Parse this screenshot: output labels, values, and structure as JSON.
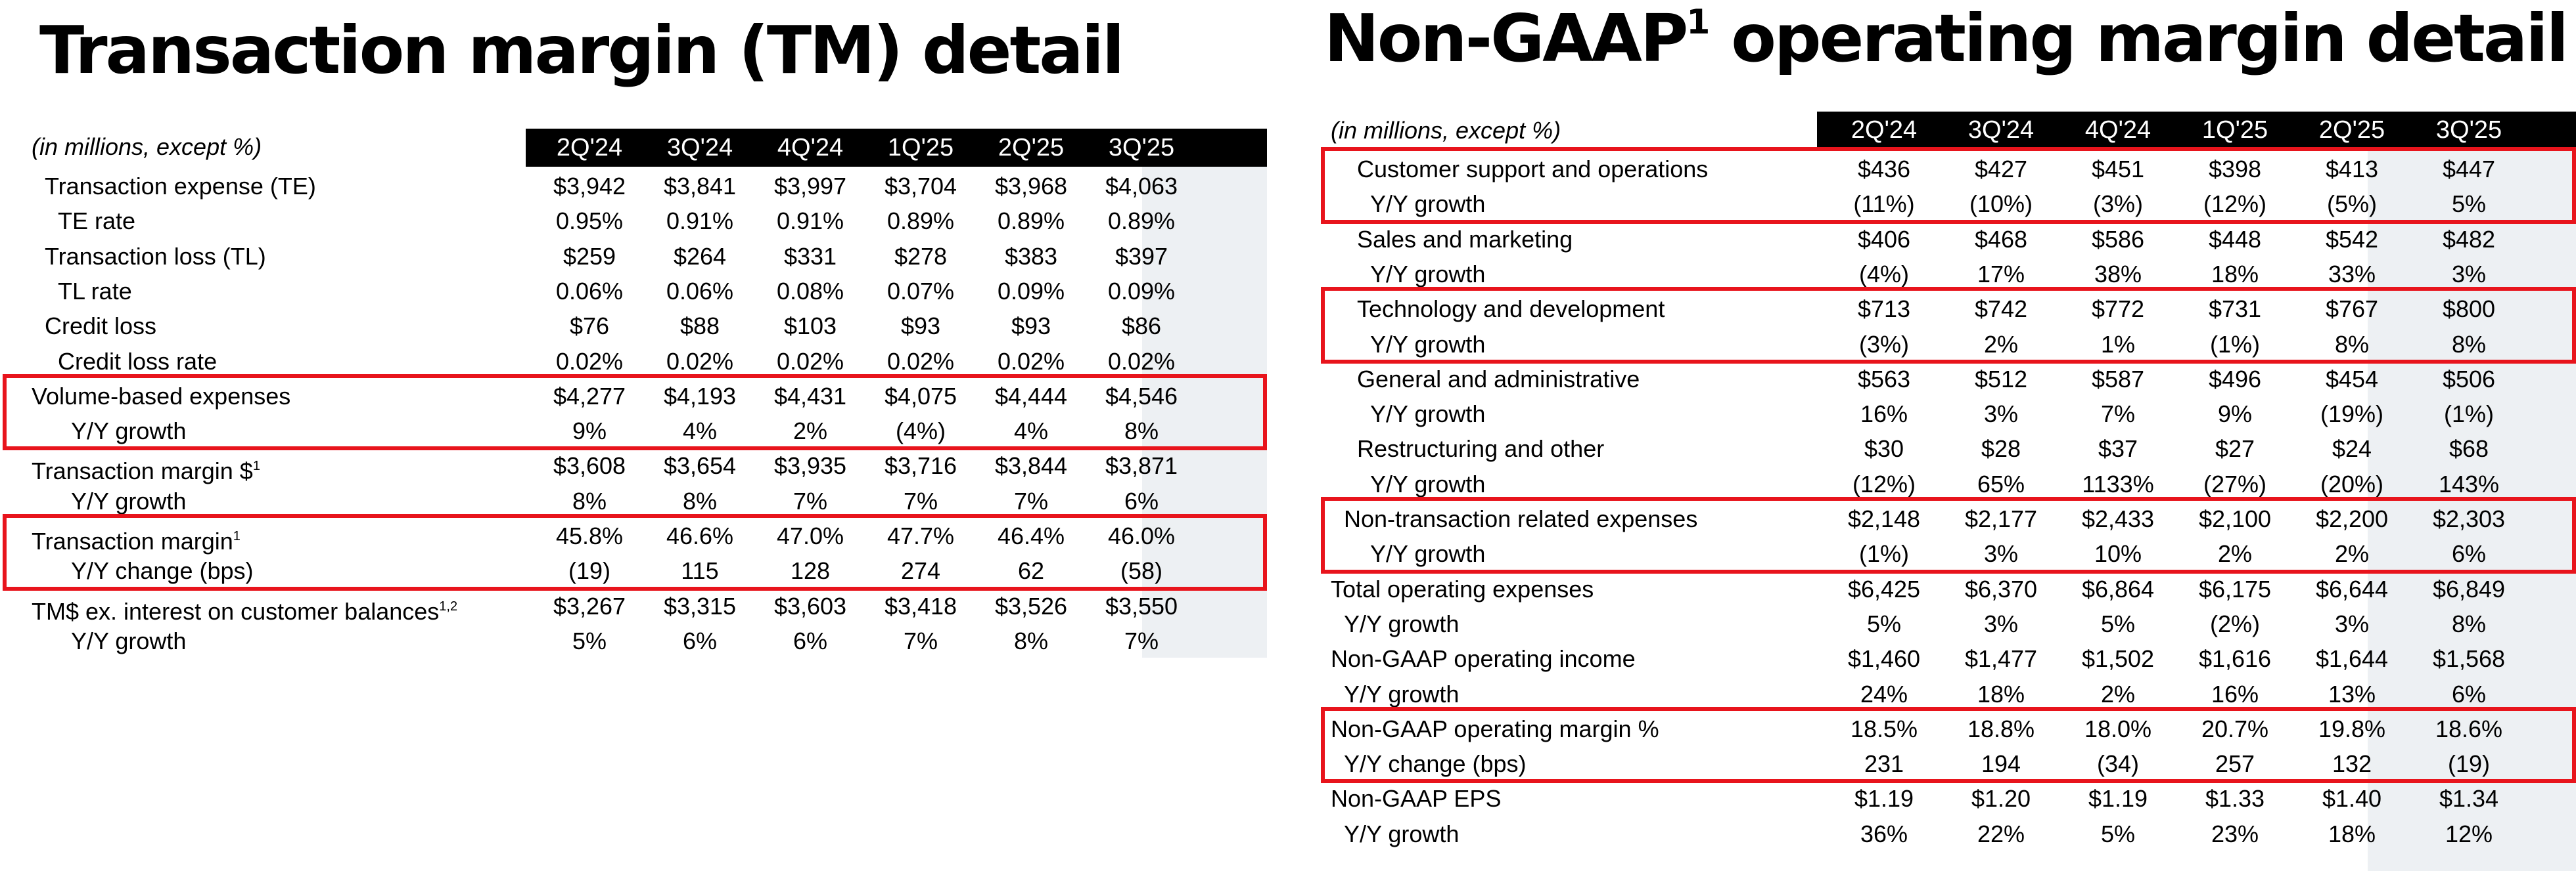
{
  "left": {
    "title": "Transaction margin (TM) detail",
    "unit_note": "(in millions, except %)",
    "columns": [
      "2Q'24",
      "3Q'24",
      "4Q'24",
      "1Q'25",
      "2Q'25",
      "3Q'25"
    ],
    "rows": [
      {
        "label": "Transaction expense (TE)",
        "indent": 1,
        "values": [
          "$3,942",
          "$3,841",
          "$3,997",
          "$3,704",
          "$3,968",
          "$4,063"
        ]
      },
      {
        "label": "TE rate",
        "indent": 2,
        "values": [
          "0.95%",
          "0.91%",
          "0.91%",
          "0.89%",
          "0.89%",
          "0.89%"
        ]
      },
      {
        "label": "Transaction loss (TL)",
        "indent": 1,
        "values": [
          "$259",
          "$264",
          "$331",
          "$278",
          "$383",
          "$397"
        ]
      },
      {
        "label": "TL rate",
        "indent": 2,
        "values": [
          "0.06%",
          "0.06%",
          "0.08%",
          "0.07%",
          "0.09%",
          "0.09%"
        ]
      },
      {
        "label": "Credit loss",
        "indent": 1,
        "values": [
          "$76",
          "$88",
          "$103",
          "$93",
          "$93",
          "$86"
        ]
      },
      {
        "label": "Credit loss rate",
        "indent": 2,
        "values": [
          "0.02%",
          "0.02%",
          "0.02%",
          "0.02%",
          "0.02%",
          "0.02%"
        ]
      },
      {
        "label": "Volume-based expenses",
        "indent": 0,
        "values": [
          "$4,277",
          "$4,193",
          "$4,431",
          "$4,075",
          "$4,444",
          "$4,546"
        ]
      },
      {
        "label": "Y/Y growth",
        "indent": 3,
        "values": [
          "9%",
          "4%",
          "2%",
          "(4%)",
          "4%",
          "8%"
        ]
      },
      {
        "label": "Transaction margin $",
        "sup": "1",
        "indent": 0,
        "values": [
          "$3,608",
          "$3,654",
          "$3,935",
          "$3,716",
          "$3,844",
          "$3,871"
        ]
      },
      {
        "label": "Y/Y growth",
        "indent": 3,
        "values": [
          "8%",
          "8%",
          "7%",
          "7%",
          "7%",
          "6%"
        ]
      },
      {
        "label": "Transaction margin",
        "sup": "1",
        "indent": 0,
        "values": [
          "45.8%",
          "46.6%",
          "47.0%",
          "47.7%",
          "46.4%",
          "46.0%"
        ]
      },
      {
        "label": "Y/Y change (bps)",
        "indent": 3,
        "values": [
          "(19)",
          "115",
          "128",
          "274",
          "62",
          "(58)"
        ]
      },
      {
        "label": "TM$ ex. interest on customer balances",
        "sup": "1,2",
        "indent": 0,
        "values": [
          "$3,267",
          "$3,315",
          "$3,603",
          "$3,418",
          "$3,526",
          "$3,550"
        ]
      },
      {
        "label": "Y/Y growth",
        "indent": 3,
        "values": [
          "5%",
          "6%",
          "6%",
          "7%",
          "8%",
          "7%"
        ]
      }
    ]
  },
  "right": {
    "title": "Non-GAAP",
    "title_sup": "1",
    "title_rest": " operating margin detail",
    "unit_note": "(in millions, except %)",
    "columns": [
      "2Q'24",
      "3Q'24",
      "4Q'24",
      "1Q'25",
      "2Q'25",
      "3Q'25"
    ],
    "rows": [
      {
        "label": "Customer support and operations",
        "indent": 1,
        "values": [
          "$436",
          "$427",
          "$451",
          "$398",
          "$413",
          "$447"
        ]
      },
      {
        "label": "Y/Y growth",
        "indent": 2,
        "values": [
          "(11%)",
          "(10%)",
          "(3%)",
          "(12%)",
          "(5%)",
          "5%"
        ]
      },
      {
        "label": "Sales and marketing",
        "indent": 1,
        "values": [
          "$406",
          "$468",
          "$586",
          "$448",
          "$542",
          "$482"
        ]
      },
      {
        "label": "Y/Y growth",
        "indent": 2,
        "values": [
          "(4%)",
          "17%",
          "38%",
          "18%",
          "33%",
          "3%"
        ]
      },
      {
        "label": "Technology and development",
        "indent": 1,
        "values": [
          "$713",
          "$742",
          "$772",
          "$731",
          "$767",
          "$800"
        ]
      },
      {
        "label": "Y/Y growth",
        "indent": 2,
        "values": [
          "(3%)",
          "2%",
          "1%",
          "(1%)",
          "8%",
          "8%"
        ]
      },
      {
        "label": "General and administrative",
        "indent": 1,
        "values": [
          "$563",
          "$512",
          "$587",
          "$496",
          "$454",
          "$506"
        ]
      },
      {
        "label": "Y/Y growth",
        "indent": 2,
        "values": [
          "16%",
          "3%",
          "7%",
          "9%",
          "(19%)",
          "(1%)"
        ]
      },
      {
        "label": "Restructuring and other",
        "indent": 1,
        "values": [
          "$30",
          "$28",
          "$37",
          "$27",
          "$24",
          "$68"
        ]
      },
      {
        "label": "Y/Y growth",
        "indent": 2,
        "values": [
          "(12%)",
          "65%",
          "1133%",
          "(27%)",
          "(20%)",
          "143%"
        ]
      },
      {
        "label": "Non-transaction related expenses",
        "indent": 3,
        "values": [
          "$2,148",
          "$2,177",
          "$2,433",
          "$2,100",
          "$2,200",
          "$2,303"
        ]
      },
      {
        "label": "Y/Y growth",
        "indent": 2,
        "values": [
          "(1%)",
          "3%",
          "10%",
          "2%",
          "2%",
          "6%"
        ]
      },
      {
        "label": "Total operating expenses",
        "indent": 0,
        "values": [
          "$6,425",
          "$6,370",
          "$6,864",
          "$6,175",
          "$6,644",
          "$6,849"
        ]
      },
      {
        "label": "Y/Y growth",
        "indent": 4,
        "values": [
          "5%",
          "3%",
          "5%",
          "(2%)",
          "3%",
          "8%"
        ]
      },
      {
        "label": "Non-GAAP operating income",
        "indent": 0,
        "values": [
          "$1,460",
          "$1,477",
          "$1,502",
          "$1,616",
          "$1,644",
          "$1,568"
        ]
      },
      {
        "label": "Y/Y growth",
        "indent": 4,
        "values": [
          "24%",
          "18%",
          "2%",
          "16%",
          "13%",
          "6%"
        ]
      },
      {
        "label": "Non-GAAP operating margin %",
        "indent": 0,
        "values": [
          "18.5%",
          "18.8%",
          "18.0%",
          "20.7%",
          "19.8%",
          "18.6%"
        ]
      },
      {
        "label": "Y/Y change (bps)",
        "indent": 4,
        "values": [
          "231",
          "194",
          "(34)",
          "257",
          "132",
          "(19)"
        ]
      },
      {
        "label": "Non-GAAP EPS",
        "indent": 0,
        "values": [
          "$1.19",
          "$1.20",
          "$1.19",
          "$1.33",
          "$1.40",
          "$1.34"
        ]
      },
      {
        "label": "Y/Y growth",
        "indent": 4,
        "values": [
          "36%",
          "22%",
          "5%",
          "23%",
          "18%",
          "12%"
        ]
      }
    ]
  }
}
